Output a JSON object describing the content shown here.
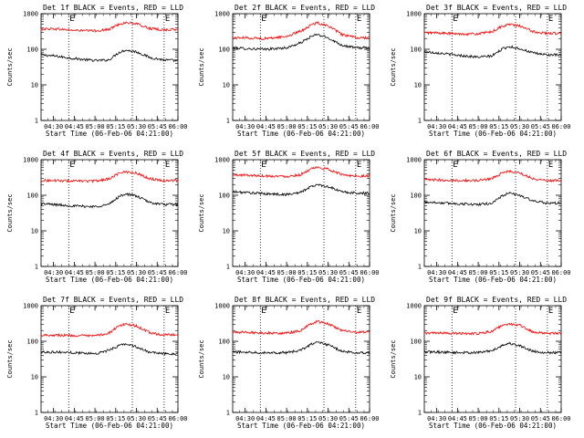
{
  "figure": {
    "x_axis_title": "Start Time (06-Feb-06 04:21:00)",
    "y_axis_title": "Counts/sec",
    "x_tick_labels": [
      "04:30",
      "04:45",
      "05:00",
      "05:15",
      "05:30",
      "05:45",
      "06:00"
    ],
    "y_tick_labels": [
      "1",
      "10",
      "100",
      "1000"
    ],
    "marker_labels": [
      "E",
      "E"
    ],
    "colors": {
      "events": "#000000",
      "lld": "#ff0000",
      "axes": "#000000",
      "background": "#ffffff"
    }
  },
  "chart_data": [
    {
      "type": "line",
      "title": "Det 1f BLACK = Events, RED = LLD",
      "xlim": [
        "04:21",
        "06:00"
      ],
      "ylim": [
        1,
        1000
      ],
      "yscale": "log",
      "series": [
        {
          "name": "Events",
          "color": "#000000",
          "x": [
            "04:21",
            "04:30",
            "04:45",
            "05:00",
            "05:10",
            "05:17",
            "05:22",
            "05:30",
            "05:40",
            "05:50",
            "06:00"
          ],
          "values": [
            70,
            65,
            55,
            48,
            50,
            80,
            95,
            85,
            58,
            50,
            48
          ]
        },
        {
          "name": "LLD",
          "color": "#ff0000",
          "x": [
            "04:21",
            "04:30",
            "04:45",
            "05:00",
            "05:10",
            "05:17",
            "05:22",
            "05:30",
            "05:40",
            "05:50",
            "06:00"
          ],
          "values": [
            370,
            380,
            340,
            330,
            360,
            500,
            560,
            520,
            380,
            350,
            360
          ]
        }
      ],
      "markers": {
        "dotted_lines": [
          "04:41",
          "05:27",
          "05:50"
        ],
        "labels": [
          "E",
          "E"
        ]
      }
    },
    {
      "type": "line",
      "title": "Det 2f BLACK = Events, RED = LLD",
      "xlim": [
        "04:21",
        "06:00"
      ],
      "ylim": [
        1,
        1000
      ],
      "yscale": "log",
      "series": [
        {
          "name": "Events",
          "color": "#000000",
          "x": [
            "04:21",
            "04:30",
            "04:45",
            "05:00",
            "05:10",
            "05:17",
            "05:22",
            "05:30",
            "05:40",
            "05:50",
            "06:00"
          ],
          "values": [
            110,
            105,
            100,
            110,
            150,
            220,
            260,
            210,
            130,
            110,
            110
          ]
        },
        {
          "name": "LLD",
          "color": "#ff0000",
          "x": [
            "04:21",
            "04:30",
            "04:45",
            "05:00",
            "05:10",
            "05:17",
            "05:22",
            "05:30",
            "05:40",
            "05:50",
            "06:00"
          ],
          "values": [
            210,
            210,
            200,
            230,
            320,
            460,
            560,
            460,
            260,
            210,
            210
          ]
        }
      ],
      "markers": {
        "dotted_lines": [
          "04:41",
          "05:27",
          "05:50"
        ],
        "labels": [
          "E",
          "E"
        ]
      }
    },
    {
      "type": "line",
      "title": "Det 3f BLACK = Events, RED = LLD",
      "xlim": [
        "04:21",
        "06:00"
      ],
      "ylim": [
        1,
        1000
      ],
      "yscale": "log",
      "series": [
        {
          "name": "Events",
          "color": "#000000",
          "x": [
            "04:21",
            "04:30",
            "04:45",
            "05:00",
            "05:10",
            "05:17",
            "05:22",
            "05:30",
            "05:40",
            "05:50",
            "06:00"
          ],
          "values": [
            85,
            80,
            68,
            60,
            65,
            100,
            120,
            105,
            78,
            70,
            68
          ]
        },
        {
          "name": "LLD",
          "color": "#ff0000",
          "x": [
            "04:21",
            "04:30",
            "04:45",
            "05:00",
            "05:10",
            "05:17",
            "05:22",
            "05:30",
            "05:40",
            "05:50",
            "06:00"
          ],
          "values": [
            290,
            290,
            270,
            270,
            310,
            440,
            500,
            450,
            310,
            280,
            280
          ]
        }
      ],
      "markers": {
        "dotted_lines": [
          "04:41",
          "05:27",
          "05:50"
        ],
        "labels": [
          "E",
          "E"
        ]
      }
    },
    {
      "type": "line",
      "title": "Det 4f BLACK = Events, RED = LLD",
      "xlim": [
        "04:21",
        "06:00"
      ],
      "ylim": [
        1,
        1000
      ],
      "yscale": "log",
      "series": [
        {
          "name": "Events",
          "color": "#000000",
          "x": [
            "04:21",
            "04:30",
            "04:45",
            "05:00",
            "05:10",
            "05:17",
            "05:22",
            "05:30",
            "05:40",
            "05:50",
            "06:00"
          ],
          "values": [
            58,
            55,
            50,
            48,
            55,
            90,
            110,
            95,
            62,
            55,
            55
          ]
        },
        {
          "name": "LLD",
          "color": "#ff0000",
          "x": [
            "04:21",
            "04:30",
            "04:45",
            "05:00",
            "05:10",
            "05:17",
            "05:22",
            "05:30",
            "05:40",
            "05:50",
            "06:00"
          ],
          "values": [
            260,
            260,
            250,
            250,
            290,
            410,
            460,
            420,
            290,
            260,
            260
          ]
        }
      ],
      "markers": {
        "dotted_lines": [
          "04:41",
          "05:27",
          "05:50"
        ],
        "labels": [
          "E",
          "E"
        ]
      }
    },
    {
      "type": "line",
      "title": "Det 5f BLACK = Events, RED = LLD",
      "xlim": [
        "04:21",
        "06:00"
      ],
      "ylim": [
        1,
        1000
      ],
      "yscale": "log",
      "series": [
        {
          "name": "Events",
          "color": "#000000",
          "x": [
            "04:21",
            "04:30",
            "04:45",
            "05:00",
            "05:10",
            "05:17",
            "05:22",
            "05:30",
            "05:40",
            "05:50",
            "06:00"
          ],
          "values": [
            125,
            120,
            110,
            105,
            120,
            170,
            200,
            175,
            125,
            115,
            115
          ]
        },
        {
          "name": "LLD",
          "color": "#ff0000",
          "x": [
            "04:21",
            "04:30",
            "04:45",
            "05:00",
            "05:10",
            "05:17",
            "05:22",
            "05:30",
            "05:40",
            "05:50",
            "06:00"
          ],
          "values": [
            370,
            370,
            350,
            340,
            380,
            530,
            600,
            540,
            380,
            350,
            350
          ]
        }
      ],
      "markers": {
        "dotted_lines": [
          "04:41",
          "05:27",
          "05:50"
        ],
        "labels": [
          "E",
          "E"
        ]
      }
    },
    {
      "type": "line",
      "title": "Det 6f BLACK = Events, RED = LLD",
      "xlim": [
        "04:21",
        "06:00"
      ],
      "ylim": [
        1,
        1000
      ],
      "yscale": "log",
      "series": [
        {
          "name": "Events",
          "color": "#000000",
          "x": [
            "04:21",
            "04:30",
            "04:45",
            "05:00",
            "05:10",
            "05:17",
            "05:22",
            "05:30",
            "05:40",
            "05:50",
            "06:00"
          ],
          "values": [
            65,
            62,
            58,
            55,
            60,
            95,
            115,
            100,
            68,
            60,
            60
          ]
        },
        {
          "name": "LLD",
          "color": "#ff0000",
          "x": [
            "04:21",
            "04:30",
            "04:45",
            "05:00",
            "05:10",
            "05:17",
            "05:22",
            "05:30",
            "05:40",
            "05:50",
            "06:00"
          ],
          "values": [
            270,
            270,
            260,
            260,
            300,
            420,
            470,
            430,
            290,
            260,
            260
          ]
        }
      ],
      "markers": {
        "dotted_lines": [
          "04:41",
          "05:27",
          "05:50"
        ],
        "labels": [
          "E",
          "E"
        ]
      }
    },
    {
      "type": "line",
      "title": "Det 7f BLACK = Events, RED = LLD",
      "xlim": [
        "04:21",
        "06:00"
      ],
      "ylim": [
        1,
        1000
      ],
      "yscale": "log",
      "series": [
        {
          "name": "Events",
          "color": "#000000",
          "x": [
            "04:21",
            "04:30",
            "04:45",
            "05:00",
            "05:10",
            "05:17",
            "05:22",
            "05:30",
            "05:40",
            "05:50",
            "06:00"
          ],
          "values": [
            50,
            50,
            48,
            45,
            55,
            75,
            85,
            70,
            48,
            45,
            45
          ]
        },
        {
          "name": "LLD",
          "color": "#ff0000",
          "x": [
            "04:21",
            "04:30",
            "04:45",
            "05:00",
            "05:10",
            "05:17",
            "05:22",
            "05:30",
            "05:40",
            "05:50",
            "06:00"
          ],
          "values": [
            150,
            150,
            145,
            140,
            170,
            260,
            310,
            270,
            170,
            150,
            150
          ]
        }
      ],
      "markers": {
        "dotted_lines": [
          "04:41",
          "05:27",
          "05:50"
        ],
        "labels": [
          "E",
          "E"
        ]
      }
    },
    {
      "type": "line",
      "title": "Det 8f BLACK = Events, RED = LLD",
      "xlim": [
        "04:21",
        "06:00"
      ],
      "ylim": [
        1,
        1000
      ],
      "yscale": "log",
      "series": [
        {
          "name": "Events",
          "color": "#000000",
          "x": [
            "04:21",
            "04:30",
            "04:45",
            "05:00",
            "05:10",
            "05:17",
            "05:22",
            "05:30",
            "05:40",
            "05:50",
            "06:00"
          ],
          "values": [
            50,
            50,
            48,
            48,
            55,
            80,
            95,
            80,
            52,
            48,
            48
          ]
        },
        {
          "name": "LLD",
          "color": "#ff0000",
          "x": [
            "04:21",
            "04:30",
            "04:45",
            "05:00",
            "05:10",
            "05:17",
            "05:22",
            "05:30",
            "05:40",
            "05:50",
            "06:00"
          ],
          "values": [
            180,
            180,
            170,
            170,
            200,
            300,
            360,
            310,
            200,
            180,
            180
          ]
        }
      ],
      "markers": {
        "dotted_lines": [
          "04:41",
          "05:27",
          "05:50"
        ],
        "labels": [
          "E",
          "E"
        ]
      }
    },
    {
      "type": "line",
      "title": "Det 9f BLACK = Events, RED = LLD",
      "xlim": [
        "04:21",
        "06:00"
      ],
      "ylim": [
        1,
        1000
      ],
      "yscale": "log",
      "series": [
        {
          "name": "Events",
          "color": "#000000",
          "x": [
            "04:21",
            "04:30",
            "04:45",
            "05:00",
            "05:10",
            "05:17",
            "05:22",
            "05:30",
            "05:40",
            "05:50",
            "06:00"
          ],
          "values": [
            50,
            50,
            48,
            48,
            55,
            75,
            88,
            75,
            52,
            48,
            48
          ]
        },
        {
          "name": "LLD",
          "color": "#ff0000",
          "x": [
            "04:21",
            "04:30",
            "04:45",
            "05:00",
            "05:10",
            "05:17",
            "05:22",
            "05:30",
            "05:40",
            "05:50",
            "06:00"
          ],
          "values": [
            170,
            170,
            165,
            165,
            190,
            270,
            310,
            280,
            180,
            165,
            165
          ]
        }
      ],
      "markers": {
        "dotted_lines": [
          "04:41",
          "05:27",
          "05:50"
        ],
        "labels": [
          "E",
          "E"
        ]
      }
    }
  ]
}
